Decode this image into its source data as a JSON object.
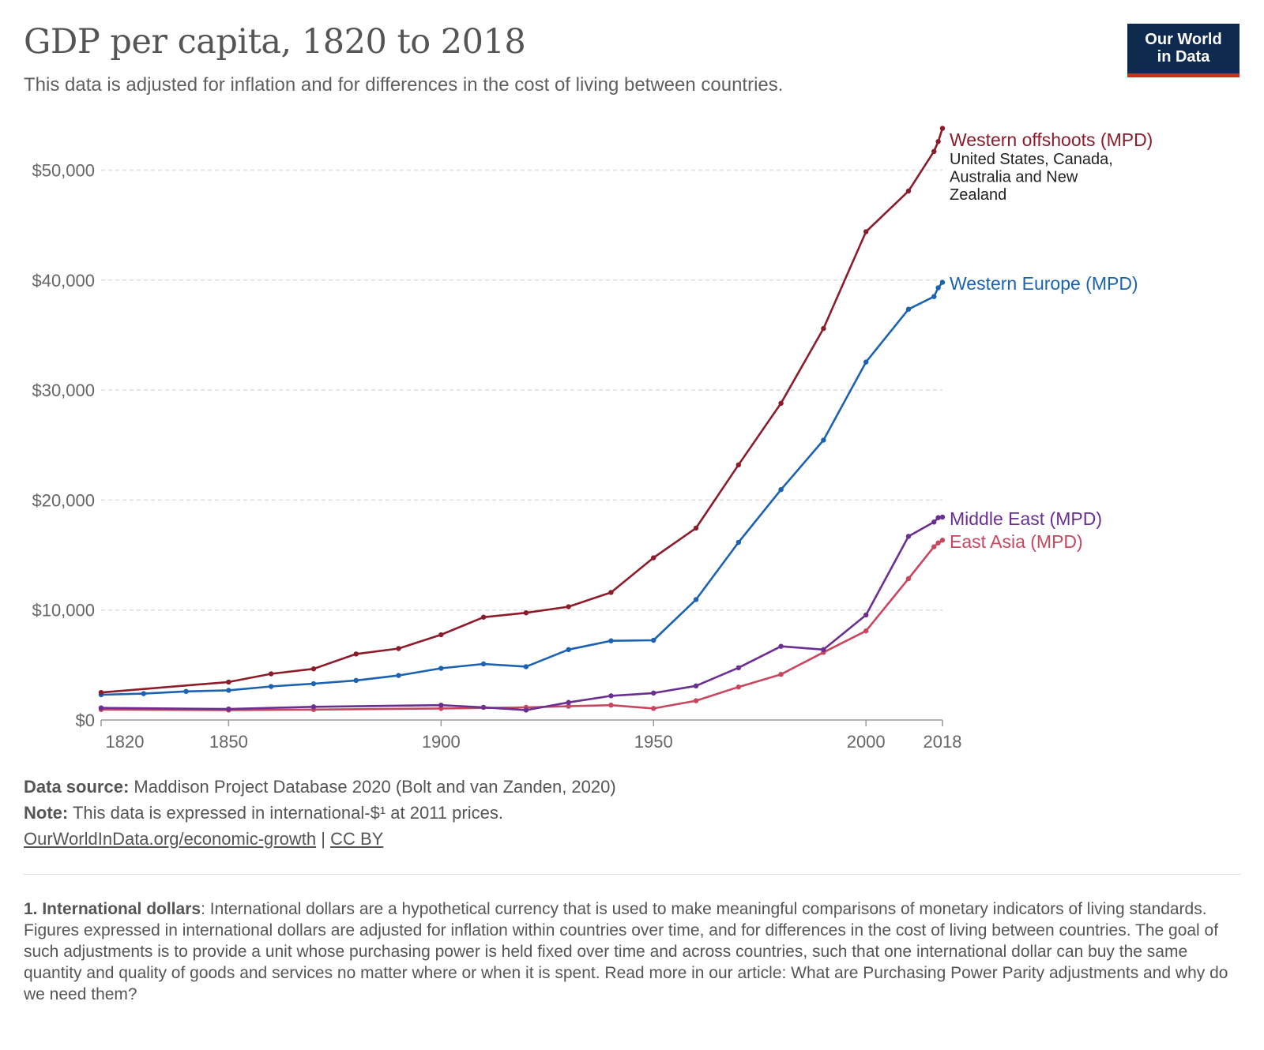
{
  "header": {
    "title": "GDP per capita, 1820 to 2018",
    "subtitle": "This data is adjusted for inflation and for differences in the cost of living between countries.",
    "logo_line1": "Our World",
    "logo_line2": "in Data"
  },
  "chart_data": {
    "type": "line",
    "title": "GDP per capita, 1820 to 2018",
    "xlim": [
      1820,
      2018
    ],
    "ylim": [
      0,
      54000
    ],
    "x_ticks": [
      1820,
      1850,
      1900,
      1950,
      2000,
      2018
    ],
    "y_ticks": [
      {
        "value": 0,
        "label": "$0"
      },
      {
        "value": 10000,
        "label": "$10,000"
      },
      {
        "value": 20000,
        "label": "$20,000"
      },
      {
        "value": 30000,
        "label": "$30,000"
      },
      {
        "value": 40000,
        "label": "$40,000"
      },
      {
        "value": 50000,
        "label": "$50,000"
      }
    ],
    "grid": "horizontal dashed",
    "legend": "labels at right end of lines",
    "series": [
      {
        "name": "Western offshoots (MPD)",
        "note": "United States, Canada, Australia and New Zealand",
        "color": "#8c1c2a",
        "points": [
          [
            1820,
            2500
          ],
          [
            1850,
            3450
          ],
          [
            1860,
            4200
          ],
          [
            1870,
            4650
          ],
          [
            1880,
            6000
          ],
          [
            1890,
            6500
          ],
          [
            1900,
            7750
          ],
          [
            1910,
            9350
          ],
          [
            1920,
            9750
          ],
          [
            1930,
            10300
          ],
          [
            1940,
            11600
          ],
          [
            1950,
            14750
          ],
          [
            1960,
            17450
          ],
          [
            1970,
            23200
          ],
          [
            1980,
            28800
          ],
          [
            1990,
            35600
          ],
          [
            2000,
            44400
          ],
          [
            2010,
            48100
          ],
          [
            2016,
            51700
          ],
          [
            2017,
            52600
          ],
          [
            2018,
            53800
          ]
        ]
      },
      {
        "name": "Western Europe (MPD)",
        "color": "#1b62b3",
        "points": [
          [
            1820,
            2300
          ],
          [
            1830,
            2400
          ],
          [
            1840,
            2600
          ],
          [
            1850,
            2700
          ],
          [
            1860,
            3050
          ],
          [
            1870,
            3300
          ],
          [
            1880,
            3600
          ],
          [
            1890,
            4050
          ],
          [
            1900,
            4700
          ],
          [
            1910,
            5100
          ],
          [
            1920,
            4850
          ],
          [
            1930,
            6400
          ],
          [
            1940,
            7200
          ],
          [
            1950,
            7250
          ],
          [
            1960,
            10950
          ],
          [
            1970,
            16150
          ],
          [
            1980,
            20950
          ],
          [
            1990,
            25450
          ],
          [
            2000,
            32550
          ],
          [
            2010,
            37350
          ],
          [
            2016,
            38500
          ],
          [
            2017,
            39300
          ],
          [
            2018,
            39800
          ]
        ]
      },
      {
        "name": "Middle East (MPD)",
        "color": "#6a2f91",
        "points": [
          [
            1820,
            1100
          ],
          [
            1850,
            1000
          ],
          [
            1870,
            1200
          ],
          [
            1900,
            1350
          ],
          [
            1910,
            1150
          ],
          [
            1920,
            900
          ],
          [
            1930,
            1600
          ],
          [
            1940,
            2200
          ],
          [
            1950,
            2450
          ],
          [
            1960,
            3100
          ],
          [
            1970,
            4750
          ],
          [
            1980,
            6700
          ],
          [
            1990,
            6400
          ],
          [
            2000,
            9550
          ],
          [
            2010,
            16700
          ],
          [
            2016,
            18000
          ],
          [
            2017,
            18400
          ],
          [
            2018,
            18450
          ]
        ]
      },
      {
        "name": "East Asia (MPD)",
        "color": "#c8475f",
        "points": [
          [
            1820,
            950
          ],
          [
            1850,
            900
          ],
          [
            1870,
            950
          ],
          [
            1900,
            1050
          ],
          [
            1920,
            1150
          ],
          [
            1930,
            1250
          ],
          [
            1940,
            1350
          ],
          [
            1950,
            1050
          ],
          [
            1960,
            1750
          ],
          [
            1970,
            3000
          ],
          [
            1980,
            4150
          ],
          [
            1990,
            6150
          ],
          [
            2000,
            8100
          ],
          [
            2010,
            12850
          ],
          [
            2016,
            15750
          ],
          [
            2017,
            16100
          ],
          [
            2018,
            16350
          ]
        ]
      }
    ]
  },
  "footer": {
    "source_label": "Data source:",
    "source_text": "Maddison Project Database 2020 (Bolt and van Zanden, 2020)",
    "note_label": "Note:",
    "note_text": "This data is expressed in international-$¹ at 2011 prices.",
    "link_text": "OurWorldInData.org/economic-growth",
    "separator": "|",
    "license_text": "CC BY"
  },
  "footnote": {
    "label": "1. International dollars",
    "text": ": International dollars are a hypothetical currency that is used to make meaningful comparisons of monetary indicators of living standards. Figures expressed in international dollars are adjusted for inflation within countries over time, and for differences in the cost of living between countries. The goal of such adjustments is to provide a unit whose purchasing power is held fixed over time and across countries, such that one international dollar can buy the same quantity and quality of goods and services no matter where or when it is spent. Read more in our article: What are Purchasing Power Parity adjustments and why do we need them?"
  }
}
